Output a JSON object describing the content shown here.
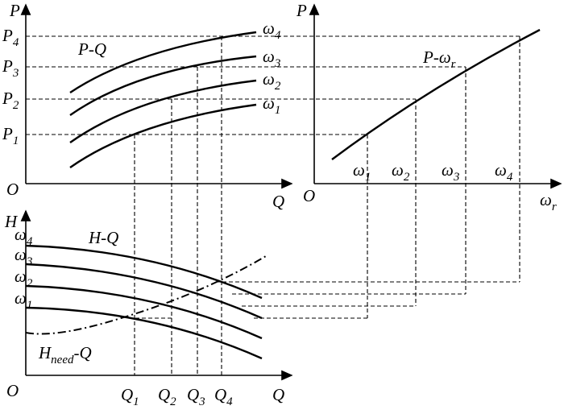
{
  "top_left": {
    "y_axis": "P",
    "x_axis": "Q",
    "origin": "O",
    "curve_label": "P-Q",
    "y_ticks": [
      {
        "base": "P",
        "sub": "1"
      },
      {
        "base": "P",
        "sub": "2"
      },
      {
        "base": "P",
        "sub": "3"
      },
      {
        "base": "P",
        "sub": "4"
      }
    ],
    "curve_labels": [
      {
        "base": "ω",
        "sub": "1"
      },
      {
        "base": "ω",
        "sub": "2"
      },
      {
        "base": "ω",
        "sub": "3"
      },
      {
        "base": "ω",
        "sub": "4"
      }
    ]
  },
  "top_right": {
    "y_axis": "P",
    "x_axis": {
      "base": "ω",
      "sub": "r"
    },
    "origin": "O",
    "curve_label": {
      "base": "P-ω",
      "sub": "r"
    },
    "x_ticks": [
      {
        "base": "ω",
        "sub": "1"
      },
      {
        "base": "ω",
        "sub": "2"
      },
      {
        "base": "ω",
        "sub": "3"
      },
      {
        "base": "ω",
        "sub": "4"
      }
    ]
  },
  "bottom": {
    "y_axis": "H",
    "x_axis": "Q",
    "origin": "O",
    "curve_label": "H-Q",
    "curve_labels": [
      {
        "base": "ω",
        "sub": "1"
      },
      {
        "base": "ω",
        "sub": "2"
      },
      {
        "base": "ω",
        "sub": "3"
      },
      {
        "base": "ω",
        "sub": "4"
      }
    ],
    "system_label": {
      "base": "H",
      "sub": "need",
      "tail": "-Q"
    },
    "x_ticks": [
      {
        "base": "Q",
        "sub": "1"
      },
      {
        "base": "Q",
        "sub": "2"
      },
      {
        "base": "Q",
        "sub": "3"
      },
      {
        "base": "Q",
        "sub": "4"
      }
    ]
  }
}
